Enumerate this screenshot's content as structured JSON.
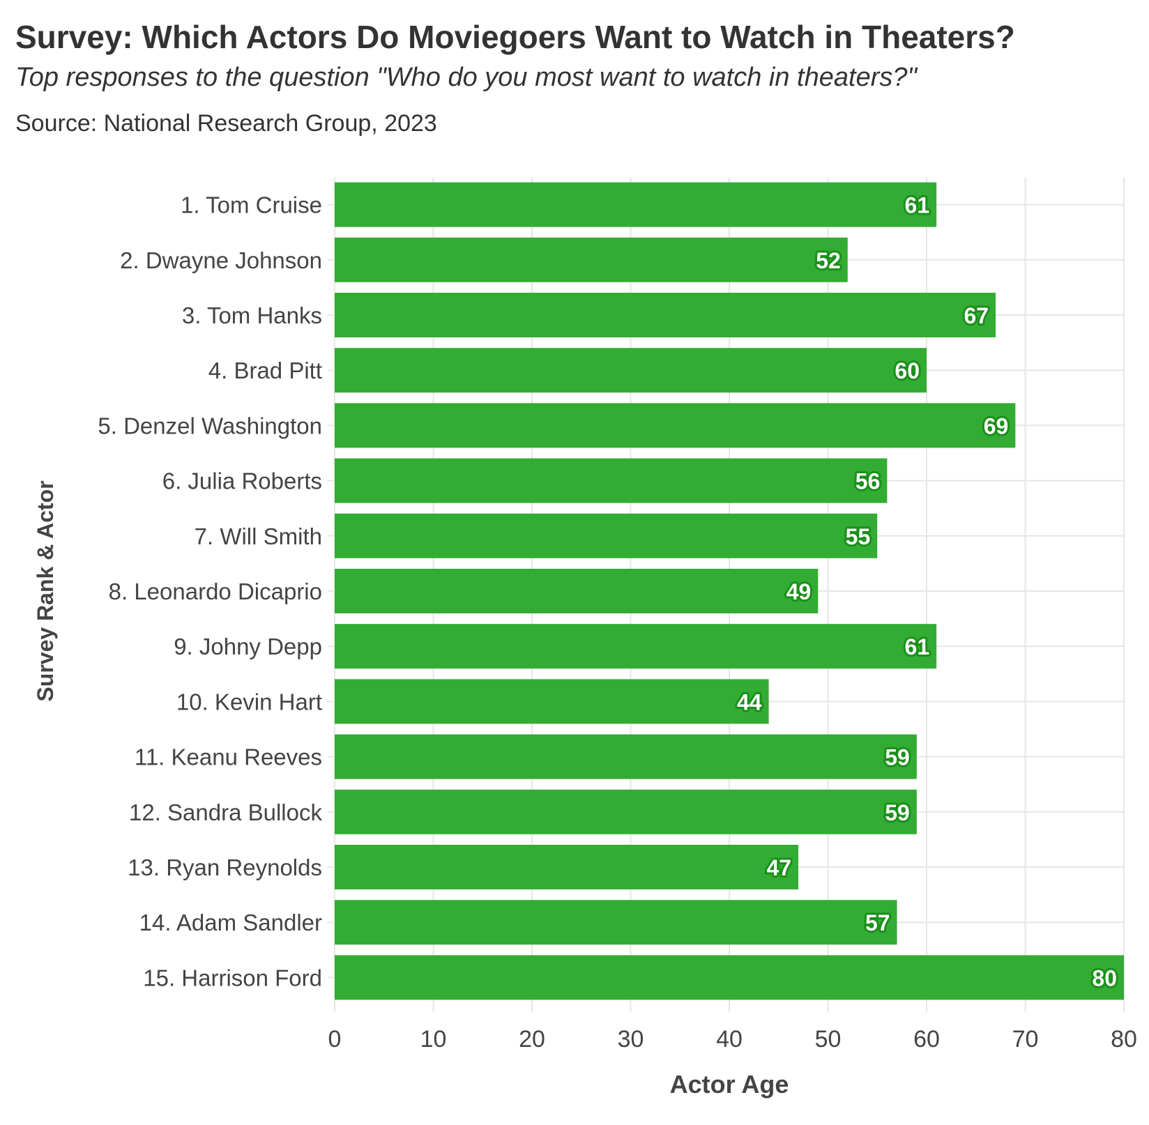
{
  "header": {
    "title": "Survey: Which Actors Do Moviegoers Want to Watch in Theaters?",
    "subtitle": "Top responses to the question \"Who do you most want to watch in theaters?\"",
    "source": "Source: National Research Group, 2023"
  },
  "colors": {
    "bar": "#33ac33",
    "bar_label_fill": "#ffffff",
    "bar_label_outline": "#1a8f1a",
    "grid": "#e6e6e6",
    "text": "#333333",
    "tick_text": "#444444"
  },
  "chart_data": {
    "type": "bar",
    "orientation": "horizontal",
    "title": "Survey: Which Actors Do Moviegoers Want to Watch in Theaters?",
    "xlabel": "Actor Age",
    "ylabel": "Survey Rank & Actor",
    "xlim": [
      0,
      80
    ],
    "xticks": [
      0,
      10,
      20,
      30,
      40,
      50,
      60,
      70,
      80
    ],
    "grid": true,
    "legend": "none",
    "categories": [
      "1. Tom Cruise",
      "2. Dwayne Johnson",
      "3. Tom Hanks",
      "4. Brad Pitt",
      "5. Denzel Washington",
      "6. Julia Roberts",
      "7. Will Smith",
      "8. Leonardo Dicaprio",
      "9. Johny Depp",
      "10. Kevin Hart",
      "11. Keanu Reeves",
      "12. Sandra Bullock",
      "13. Ryan Reynolds",
      "14. Adam Sandler",
      "15. Harrison Ford"
    ],
    "values": [
      61,
      52,
      67,
      60,
      69,
      56,
      55,
      49,
      61,
      44,
      59,
      59,
      47,
      57,
      80
    ]
  }
}
